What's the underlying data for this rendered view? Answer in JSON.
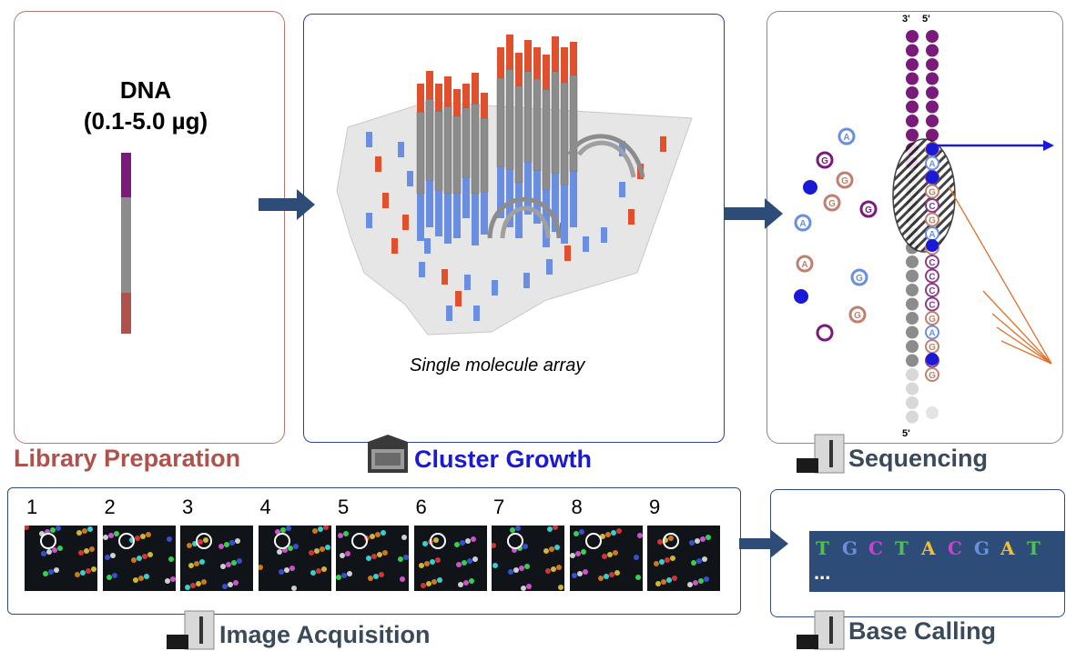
{
  "library": {
    "dna_title": "DNA",
    "dna_amount": "(0.1-5.0 µg)",
    "label": "Library Preparation"
  },
  "cluster": {
    "caption": "Single molecule array",
    "label": "Cluster Growth"
  },
  "sequencing": {
    "label": "Sequencing",
    "strand_3prime": "3'",
    "strand_5prime_top": "5'",
    "strand_5prime_bottom": "5'",
    "free_nucleotides": [
      "A",
      "G",
      "G",
      "G",
      "A",
      "G",
      "A",
      "G",
      "G"
    ],
    "strand_letters": [
      "G",
      "A",
      "C",
      "G",
      "C",
      "G",
      "A",
      "G",
      "C",
      "C",
      "C",
      "C",
      "G",
      "A",
      "G",
      "C",
      "G"
    ]
  },
  "image_acquisition": {
    "label": "Image Acquisition",
    "frames": [
      "1",
      "2",
      "3",
      "4",
      "5",
      "6",
      "7",
      "8",
      "9"
    ]
  },
  "base_calling": {
    "label": "Base Calling",
    "bases": [
      "T",
      "G",
      "C",
      "T",
      "A",
      "C",
      "G",
      "A",
      "T"
    ],
    "ellipsis": "..."
  },
  "colors": {
    "A": "#f0c030",
    "C": "#d040d0",
    "G": "#70e080",
    "T": "#50c050",
    "purple": "#7a1a7a",
    "blue": "#1a1ad6",
    "red_end": "#e0502c",
    "arrow": "#2e4c78"
  }
}
